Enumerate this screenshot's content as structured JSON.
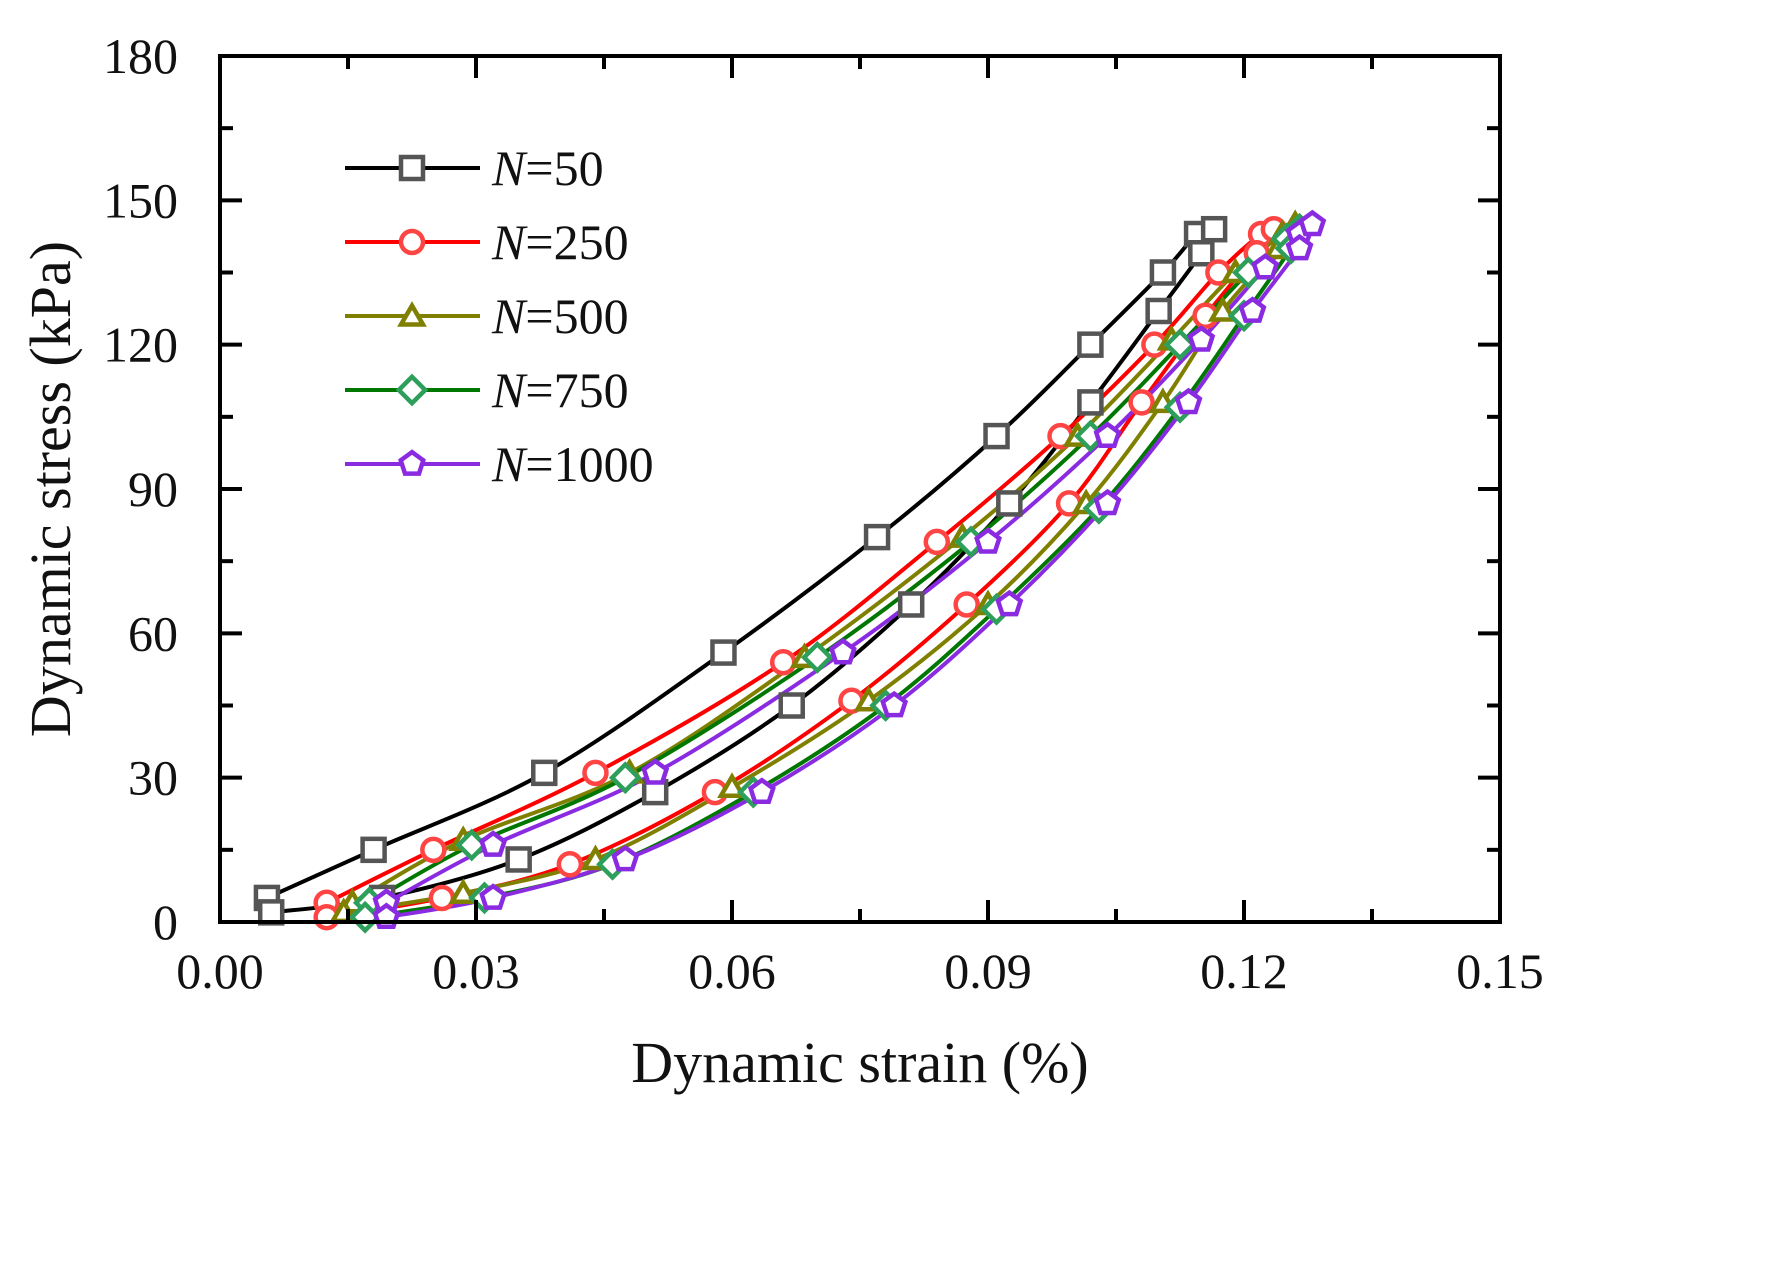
{
  "chart_data": {
    "type": "line",
    "title": "",
    "xlabel": "Dynamic strain (%)",
    "ylabel": "Dynamic stress (kPa)",
    "xlim": [
      0,
      0.15
    ],
    "ylim": [
      0,
      180
    ],
    "xticks": [
      "0.00",
      "0.03",
      "0.06",
      "0.09",
      "0.12",
      "0.15"
    ],
    "yticks": [
      "0",
      "30",
      "60",
      "90",
      "120",
      "150",
      "180"
    ],
    "legend_position": "top-left",
    "series": [
      {
        "name": "50",
        "label_prefix": "N",
        "label_eq": "=",
        "color": "#000000",
        "marker": "square",
        "marker_color": "#555555",
        "loading": [
          [
            0.0055,
            5
          ],
          [
            0.018,
            15
          ],
          [
            0.038,
            31
          ],
          [
            0.059,
            56
          ],
          [
            0.077,
            80
          ],
          [
            0.091,
            101
          ],
          [
            0.102,
            120
          ],
          [
            0.1105,
            135
          ],
          [
            0.1145,
            143
          ],
          [
            0.1165,
            144
          ]
        ],
        "unloading": [
          [
            0.1165,
            144
          ],
          [
            0.115,
            139
          ],
          [
            0.11,
            127
          ],
          [
            0.102,
            108
          ],
          [
            0.0925,
            87
          ],
          [
            0.081,
            66
          ],
          [
            0.067,
            45
          ],
          [
            0.051,
            27
          ],
          [
            0.035,
            13
          ],
          [
            0.019,
            5
          ],
          [
            0.006,
            2
          ]
        ]
      },
      {
        "name": "250",
        "label_prefix": "N",
        "label_eq": "=",
        "color": "#ff0000",
        "marker": "circle",
        "marker_color": "#ff4444",
        "loading": [
          [
            0.0125,
            4
          ],
          [
            0.025,
            15
          ],
          [
            0.044,
            31
          ],
          [
            0.066,
            54
          ],
          [
            0.084,
            79
          ],
          [
            0.0985,
            101
          ],
          [
            0.1095,
            120
          ],
          [
            0.117,
            135
          ],
          [
            0.122,
            143
          ],
          [
            0.1235,
            144
          ]
        ],
        "unloading": [
          [
            0.1235,
            144
          ],
          [
            0.1215,
            139
          ],
          [
            0.1155,
            126
          ],
          [
            0.108,
            108
          ],
          [
            0.0995,
            87
          ],
          [
            0.0875,
            66
          ],
          [
            0.074,
            46
          ],
          [
            0.058,
            27
          ],
          [
            0.041,
            12
          ],
          [
            0.026,
            5
          ],
          [
            0.0125,
            1
          ]
        ]
      },
      {
        "name": "500",
        "label_prefix": "N",
        "label_eq": "=",
        "color": "#808000",
        "marker": "triangle",
        "marker_color": "#808000",
        "loading": [
          [
            0.0155,
            4
          ],
          [
            0.0285,
            17
          ],
          [
            0.048,
            31
          ],
          [
            0.0685,
            55
          ],
          [
            0.087,
            80
          ],
          [
            0.1005,
            101
          ],
          [
            0.1115,
            121
          ],
          [
            0.119,
            135
          ],
          [
            0.1245,
            143
          ],
          [
            0.126,
            145
          ]
        ],
        "unloading": [
          [
            0.126,
            145
          ],
          [
            0.124,
            140
          ],
          [
            0.1175,
            127
          ],
          [
            0.1105,
            108
          ],
          [
            0.1015,
            87
          ],
          [
            0.09,
            66
          ],
          [
            0.076,
            46
          ],
          [
            0.06,
            28
          ],
          [
            0.044,
            13
          ],
          [
            0.0285,
            6
          ],
          [
            0.0145,
            2
          ]
        ]
      },
      {
        "name": "750",
        "label_prefix": "N",
        "label_eq": "=",
        "color": "#007700",
        "marker": "diamond",
        "marker_color": "#2e9e5b",
        "loading": [
          [
            0.0175,
            4
          ],
          [
            0.0295,
            16
          ],
          [
            0.0475,
            30
          ],
          [
            0.07,
            55
          ],
          [
            0.088,
            79
          ],
          [
            0.102,
            101
          ],
          [
            0.1125,
            120
          ],
          [
            0.1205,
            135
          ],
          [
            0.125,
            142
          ],
          [
            0.1265,
            144
          ]
        ],
        "unloading": [
          [
            0.1265,
            144
          ],
          [
            0.1255,
            140
          ],
          [
            0.12,
            126
          ],
          [
            0.1125,
            107
          ],
          [
            0.103,
            86
          ],
          [
            0.091,
            65
          ],
          [
            0.078,
            45
          ],
          [
            0.0625,
            27
          ],
          [
            0.046,
            12
          ],
          [
            0.031,
            5
          ],
          [
            0.017,
            1
          ]
        ]
      },
      {
        "name": "1000",
        "label_prefix": "N",
        "label_eq": "=",
        "color": "#8a2be2",
        "marker": "pentagon",
        "marker_color": "#8a2be2",
        "loading": [
          [
            0.0195,
            4
          ],
          [
            0.032,
            16
          ],
          [
            0.051,
            31
          ],
          [
            0.073,
            56
          ],
          [
            0.09,
            79
          ],
          [
            0.104,
            101
          ],
          [
            0.115,
            121
          ],
          [
            0.1225,
            136
          ],
          [
            0.1265,
            143
          ],
          [
            0.128,
            145
          ]
        ],
        "unloading": [
          [
            0.128,
            145
          ],
          [
            0.1265,
            140
          ],
          [
            0.121,
            127
          ],
          [
            0.1135,
            108
          ],
          [
            0.104,
            87
          ],
          [
            0.0925,
            66
          ],
          [
            0.079,
            45
          ],
          [
            0.0635,
            27
          ],
          [
            0.0475,
            13
          ],
          [
            0.032,
            5
          ],
          [
            0.0195,
            1
          ]
        ]
      }
    ]
  }
}
